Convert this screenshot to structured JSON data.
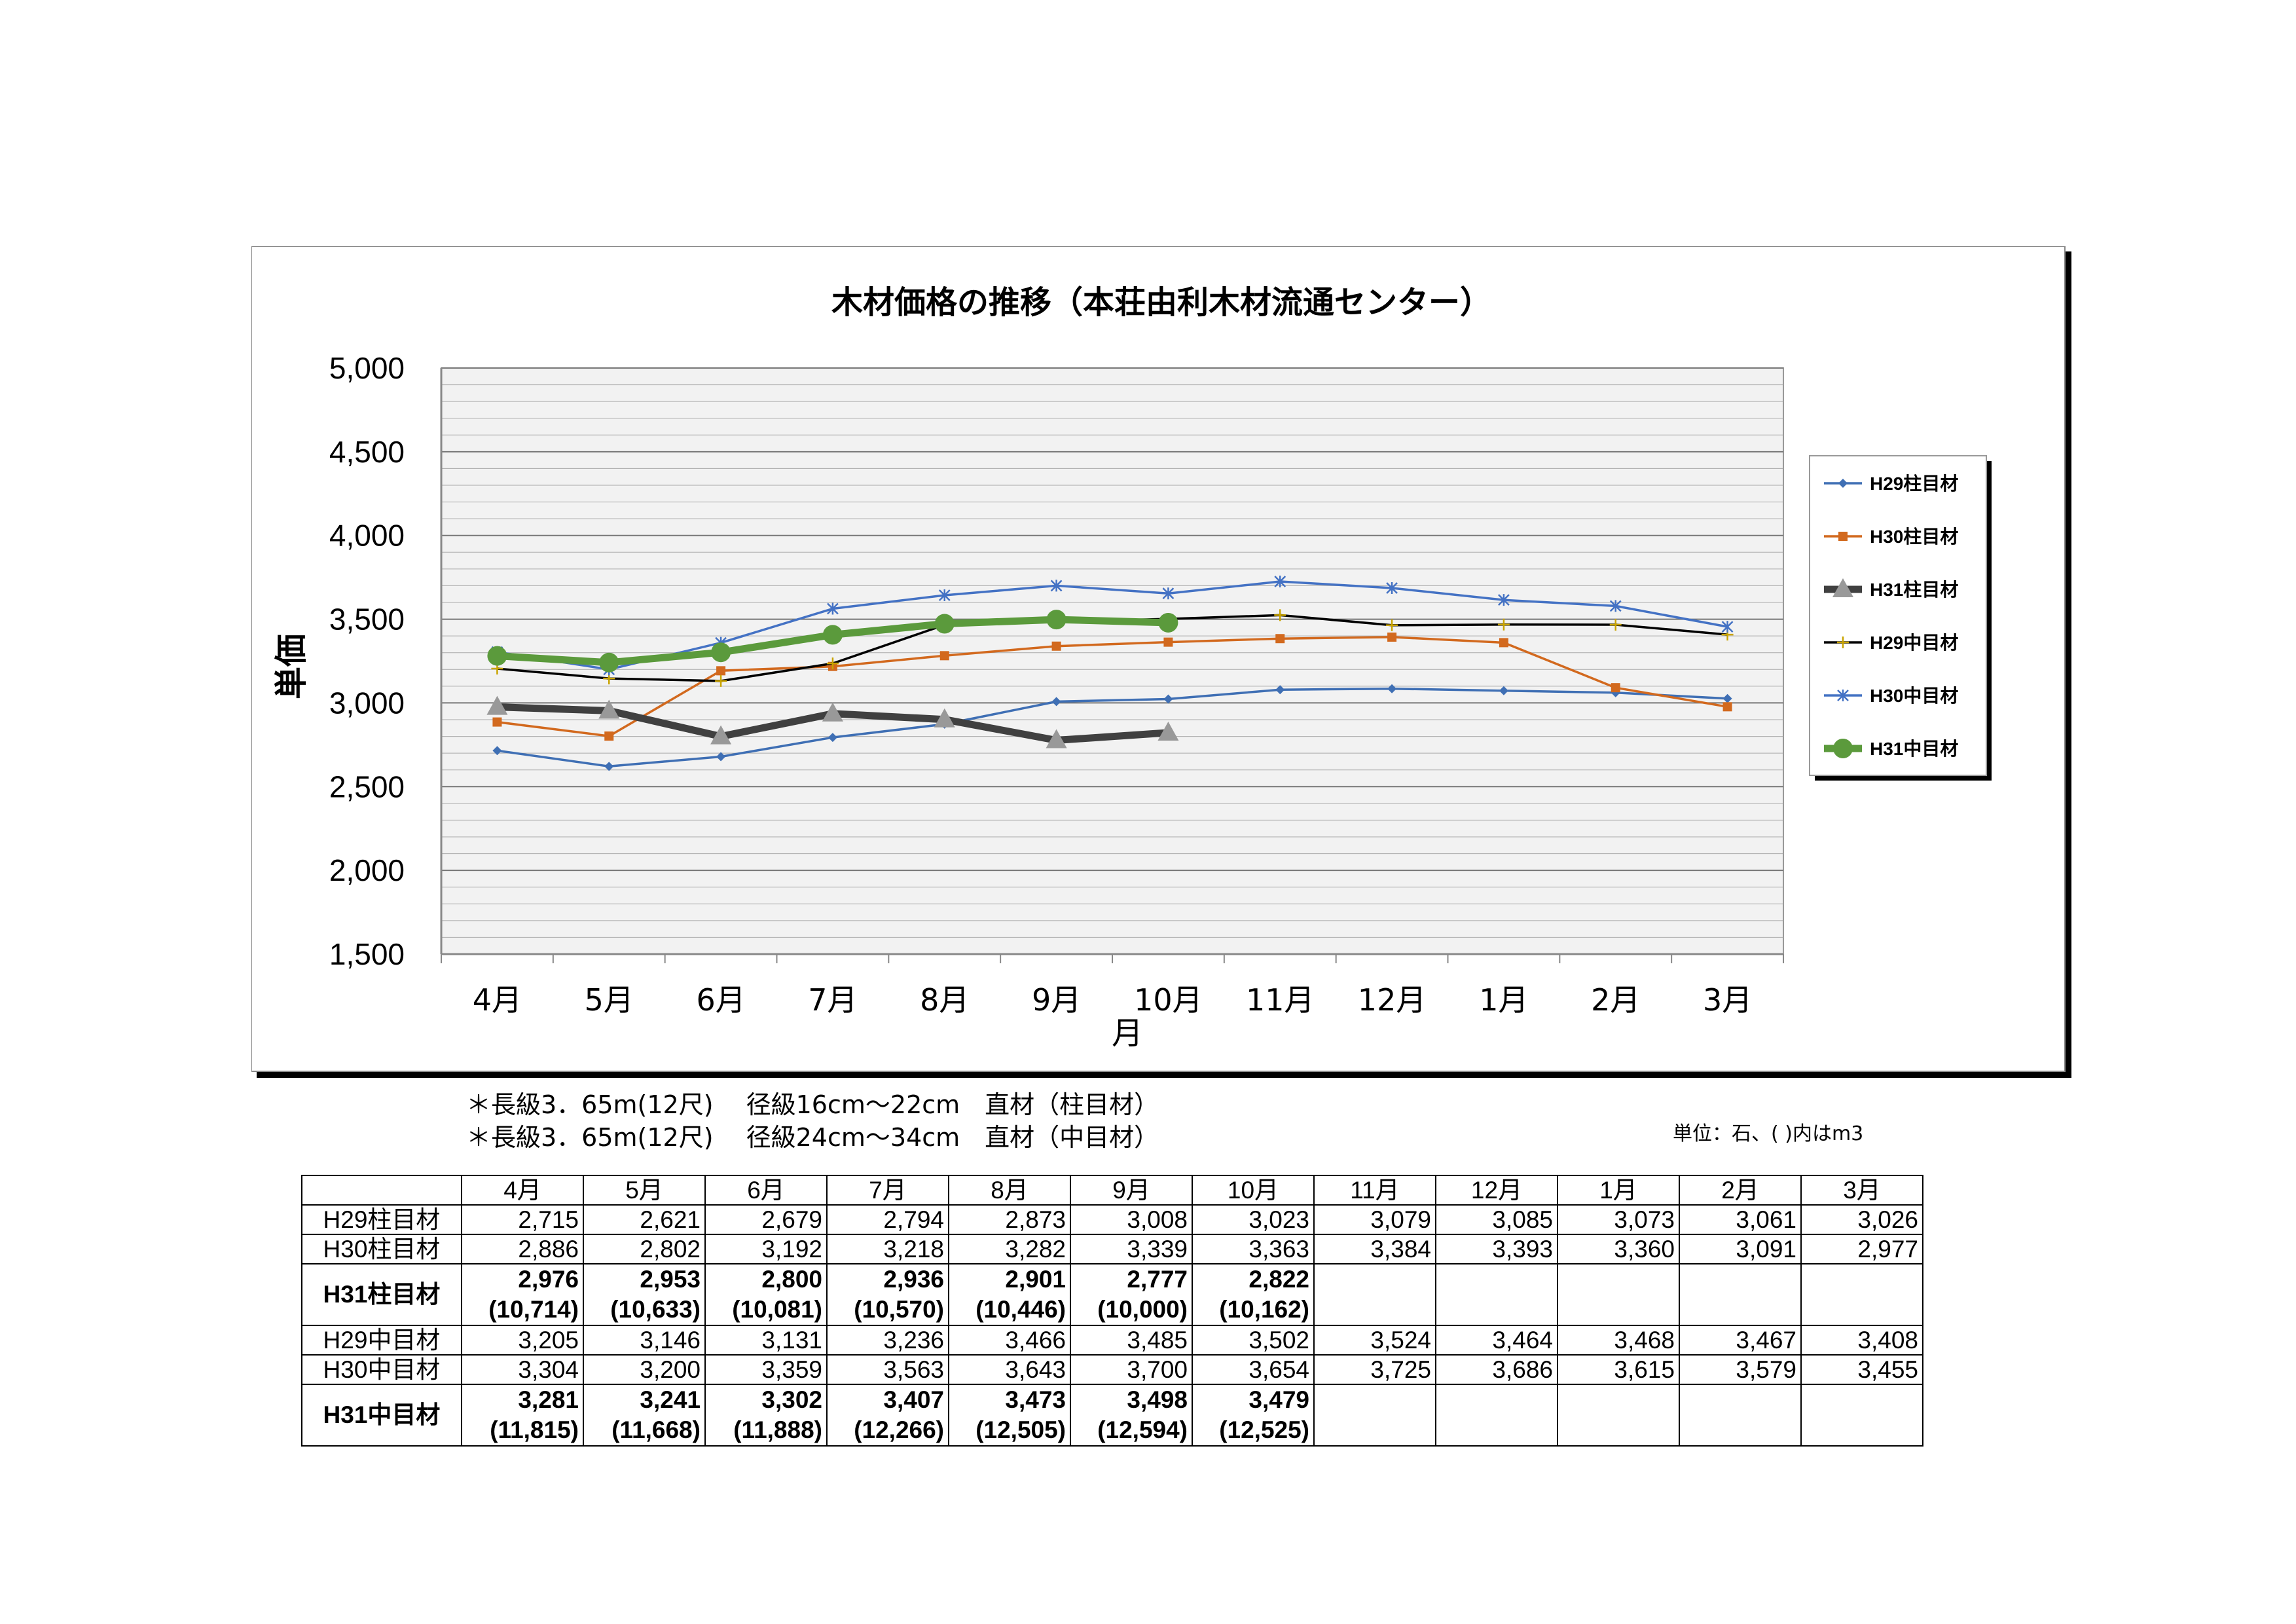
{
  "chart_data": {
    "type": "line",
    "title": "木材価格の推移（本荘由利木材流通センター）",
    "xlabel": "月",
    "ylabel": "単価",
    "ylim": [
      1500,
      5000
    ],
    "yticks": [
      "5,000",
      "4,500",
      "4,000",
      "3,500",
      "3,000",
      "2,500",
      "2,000",
      "1,500"
    ],
    "categories": [
      "4月",
      "5月",
      "6月",
      "7月",
      "8月",
      "9月",
      "10月",
      "11月",
      "12月",
      "1月",
      "2月",
      "3月"
    ],
    "grid": true,
    "legend_position": "right",
    "series": [
      {
        "name": "H29柱目材",
        "color": "#3f6fb4",
        "marker": "diamond",
        "values": [
          2715,
          2621,
          2679,
          2794,
          2873,
          3008,
          3023,
          3079,
          3085,
          3073,
          3061,
          3026
        ]
      },
      {
        "name": "H30柱目材",
        "color": "#d2691e",
        "marker": "square",
        "values": [
          2886,
          2802,
          3192,
          3218,
          3282,
          3339,
          3363,
          3384,
          3393,
          3360,
          3091,
          2977
        ]
      },
      {
        "name": "H31柱目材",
        "color": "#404040",
        "marker": "triangle",
        "values": [
          2976,
          2953,
          2800,
          2936,
          2901,
          2777,
          2822,
          null,
          null,
          null,
          null,
          null
        ]
      },
      {
        "name": "H29中目材",
        "color": "#000000",
        "marker": "plus",
        "values": [
          3205,
          3146,
          3131,
          3236,
          3466,
          3485,
          3502,
          3524,
          3464,
          3468,
          3467,
          3408
        ]
      },
      {
        "name": "H30中目材",
        "color": "#4472c4",
        "marker": "star",
        "values": [
          3304,
          3200,
          3359,
          3563,
          3643,
          3700,
          3654,
          3725,
          3686,
          3615,
          3579,
          3455
        ]
      },
      {
        "name": "H31中目材",
        "color": "#5b9a3c",
        "marker": "circle",
        "values": [
          3281,
          3241,
          3302,
          3407,
          3473,
          3498,
          3479,
          null,
          null,
          null,
          null,
          null
        ]
      }
    ]
  },
  "notes": [
    "＊長級3．65m(12尺)　 径級16cm～22cm　直材（柱目材）",
    "＊長級3．65m(12尺)　 径級24cm～34cm　直材（中目材）"
  ],
  "unit_note": "単位：石、( )内はm3",
  "table": {
    "months": [
      "4月",
      "5月",
      "6月",
      "7月",
      "8月",
      "9月",
      "10月",
      "11月",
      "12月",
      "1月",
      "2月",
      "3月"
    ],
    "rows": [
      {
        "label": "H29柱目材",
        "values": [
          "2,715",
          "2,621",
          "2,679",
          "2,794",
          "2,873",
          "3,008",
          "3,023",
          "3,079",
          "3,085",
          "3,073",
          "3,061",
          "3,026"
        ]
      },
      {
        "label": "H30柱目材",
        "values": [
          "2,886",
          "2,802",
          "3,192",
          "3,218",
          "3,282",
          "3,339",
          "3,363",
          "3,384",
          "3,393",
          "3,360",
          "3,091",
          "2,977"
        ]
      },
      {
        "label": "H31柱目材",
        "values": [
          "2,976",
          "2,953",
          "2,800",
          "2,936",
          "2,901",
          "2,777",
          "2,822",
          "",
          "",
          "",
          "",
          ""
        ],
        "sub": [
          "(10,714)",
          "(10,633)",
          "(10,081)",
          "(10,570)",
          "(10,446)",
          "(10,000)",
          "(10,162)",
          "",
          "",
          "",
          "",
          ""
        ]
      },
      {
        "label": "H29中目材",
        "values": [
          "3,205",
          "3,146",
          "3,131",
          "3,236",
          "3,466",
          "3,485",
          "3,502",
          "3,524",
          "3,464",
          "3,468",
          "3,467",
          "3,408"
        ]
      },
      {
        "label": "H30中目材",
        "values": [
          "3,304",
          "3,200",
          "3,359",
          "3,563",
          "3,643",
          "3,700",
          "3,654",
          "3,725",
          "3,686",
          "3,615",
          "3,579",
          "3,455"
        ]
      },
      {
        "label": "H31中目材",
        "values": [
          "3,281",
          "3,241",
          "3,302",
          "3,407",
          "3,473",
          "3,498",
          "3,479",
          "",
          "",
          "",
          "",
          ""
        ],
        "sub": [
          "(11,815)",
          "(11,668)",
          "(11,888)",
          "(12,266)",
          "(12,505)",
          "(12,594)",
          "(12,525)",
          "",
          "",
          "",
          "",
          ""
        ]
      }
    ]
  }
}
